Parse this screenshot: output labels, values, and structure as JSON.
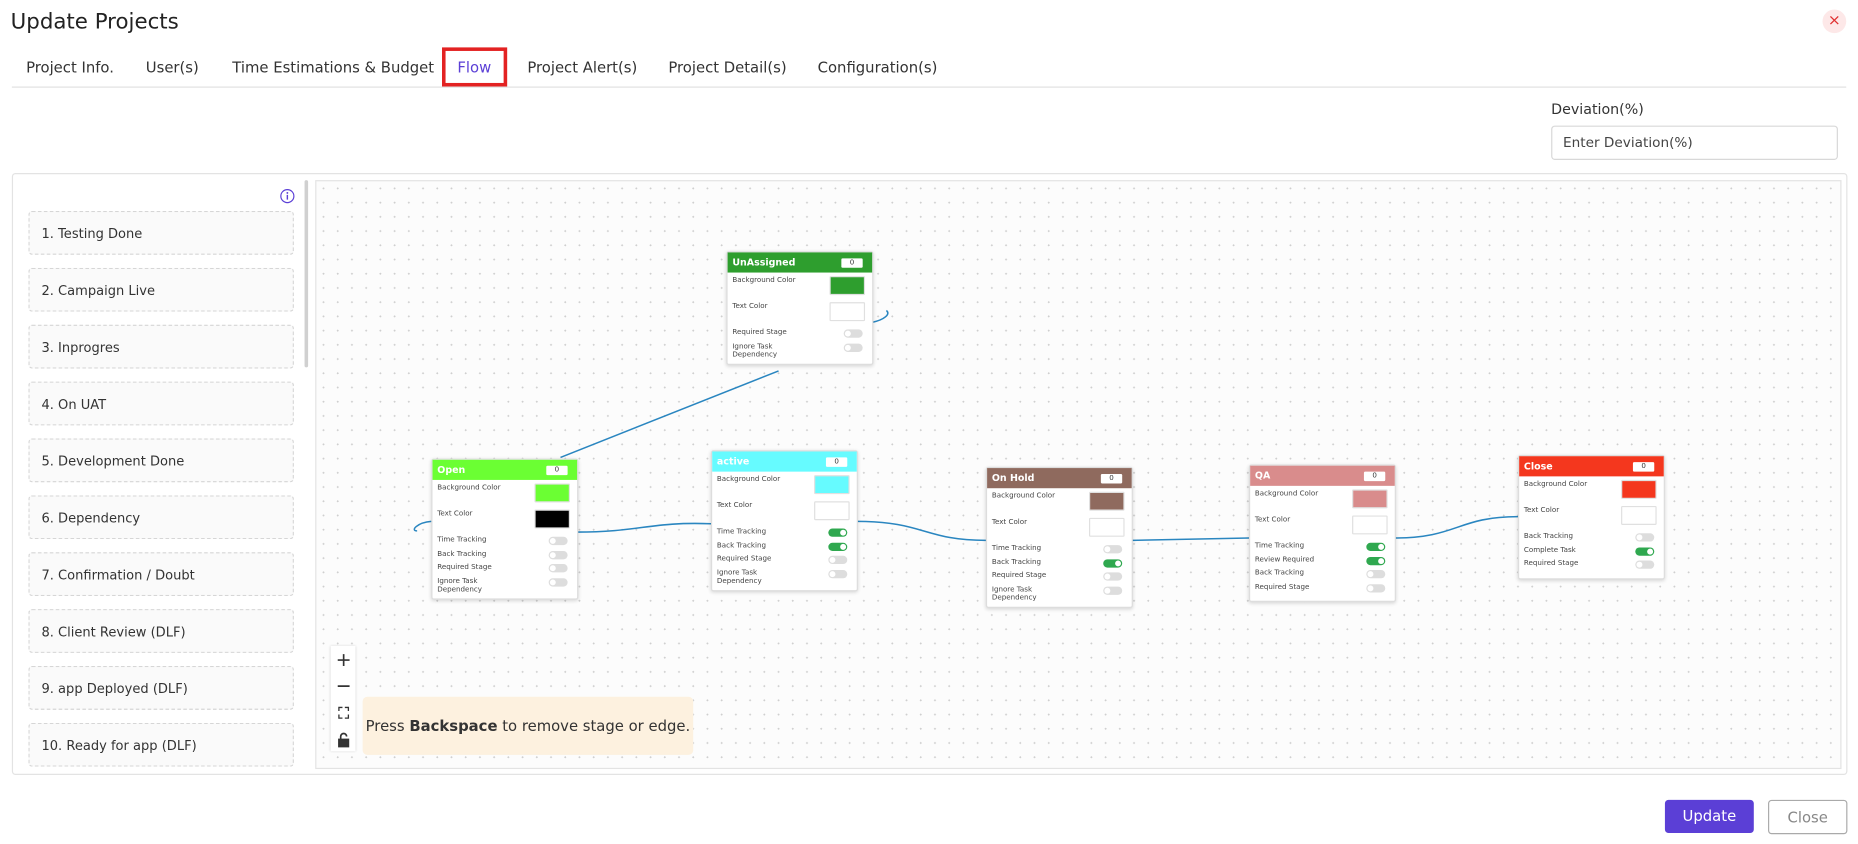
{
  "header": {
    "title": "Update Projects",
    "close": "×"
  },
  "tabs": [
    {
      "label": "Project Info.",
      "selected": false
    },
    {
      "label": "User(s)",
      "selected": false
    },
    {
      "label": "Time Estimations & Budget",
      "selected": false
    },
    {
      "label": "Flow",
      "selected": true
    },
    {
      "label": "Project Alert(s)",
      "selected": false
    },
    {
      "label": "Project Detail(s)",
      "selected": false
    },
    {
      "label": "Configuration(s)",
      "selected": false
    }
  ],
  "deviation": {
    "label": "Deviation(%)",
    "placeholder": "Enter Deviation(%)"
  },
  "stages": [
    "1. Testing Done",
    "2. Campaign Live",
    "3. Inprogres",
    "4. On UAT",
    "5. Development Done",
    "6. Dependency",
    "7. Confirmation / Doubt",
    "8. Client Review (DLF)",
    "9. app Deployed (DLF)",
    "10. Ready for app (DLF)"
  ],
  "nodes": [
    {
      "title": "UnAssigned",
      "count": 0,
      "color": "#2e9e2e",
      "rows": [
        {
          "label": "Background Color",
          "swatch": "#2e9e2e"
        },
        {
          "label": "Text Color",
          "swatch": "#ffffff"
        },
        {
          "label": "Required Stage",
          "toggle": false
        },
        {
          "label": "Ignore Task Dependency",
          "toggle": false
        }
      ]
    },
    {
      "title": "Open",
      "count": 0,
      "color": "#6bff33",
      "rows": [
        {
          "label": "Background Color",
          "swatch": "#6bff33"
        },
        {
          "label": "Text Color",
          "swatch": "#000000"
        },
        {
          "label": "Time Tracking",
          "toggle": false
        },
        {
          "label": "Back Tracking",
          "toggle": false
        },
        {
          "label": "Required Stage",
          "toggle": false
        },
        {
          "label": "Ignore Task Dependency",
          "toggle": false
        }
      ]
    },
    {
      "title": "active",
      "count": 0,
      "color": "#66fbff",
      "rows": [
        {
          "label": "Background Color",
          "swatch": "#66fbff"
        },
        {
          "label": "Text Color",
          "swatch": "#ffffff"
        },
        {
          "label": "Time Tracking",
          "toggle": true
        },
        {
          "label": "Back Tracking",
          "toggle": true
        },
        {
          "label": "Required Stage",
          "toggle": false
        },
        {
          "label": "Ignore Task Dependency",
          "toggle": false
        }
      ]
    },
    {
      "title": "On Hold",
      "count": 0,
      "color": "#8f6a5e",
      "rows": [
        {
          "label": "Background Color",
          "swatch": "#8f6a5e"
        },
        {
          "label": "Text Color",
          "swatch": "#ffffff"
        },
        {
          "label": "Time Tracking",
          "toggle": false
        },
        {
          "label": "Back Tracking",
          "toggle": true
        },
        {
          "label": "Required Stage",
          "toggle": false
        },
        {
          "label": "Ignore Task Dependency",
          "toggle": false
        }
      ]
    },
    {
      "title": "QA",
      "count": 0,
      "color": "#d98c8c",
      "rows": [
        {
          "label": "Background Color",
          "swatch": "#d98c8c"
        },
        {
          "label": "Text Color",
          "swatch": "#ffffff"
        },
        {
          "label": "Time Tracking",
          "toggle": true
        },
        {
          "label": "Review Required",
          "toggle": true
        },
        {
          "label": "Back Tracking",
          "toggle": false
        },
        {
          "label": "Required Stage",
          "toggle": false
        }
      ]
    },
    {
      "title": "Close",
      "count": 0,
      "color": "#f4371e",
      "rows": [
        {
          "label": "Background Color",
          "swatch": "#f4371e"
        },
        {
          "label": "Text Color",
          "swatch": "#ffffff"
        },
        {
          "label": "Back Tracking",
          "toggle": false
        },
        {
          "label": "Complete Task",
          "toggle": true
        },
        {
          "label": "Required Stage",
          "toggle": false
        }
      ]
    }
  ],
  "hint": {
    "prefix": "Press",
    "key": "Backspace",
    "suffix": "to remove stage or edge."
  },
  "buttons": {
    "update": "Update",
    "close": "Close"
  }
}
